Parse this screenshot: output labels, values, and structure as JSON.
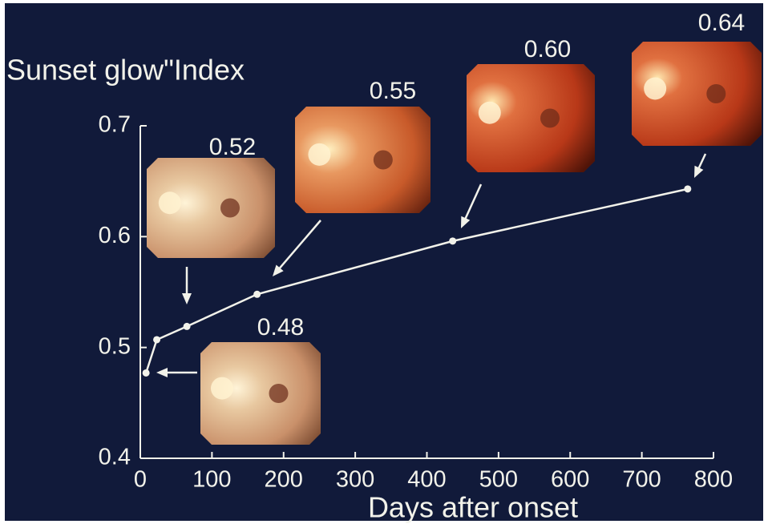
{
  "chart_data": {
    "type": "line",
    "title": "Sunset glow\"Index",
    "x_label": "Days after onset",
    "x": [
      8,
      23,
      65,
      163,
      436,
      764
    ],
    "series": [
      {
        "name": "Sunset glow index",
        "color": "#f2f2ea",
        "values": [
          0.477,
          0.507,
          0.519,
          0.548,
          0.596,
          0.643
        ]
      }
    ],
    "xlim": [
      0,
      800
    ],
    "xticks": [
      0,
      100,
      200,
      300,
      400,
      500,
      600,
      700,
      800
    ],
    "ylim": [
      0.4,
      0.7
    ],
    "yticks": [
      0.4,
      0.5,
      0.6,
      0.7
    ],
    "annotations": [
      "0.48",
      "0.52",
      "0.55",
      "0.60",
      "0.64"
    ]
  }
}
